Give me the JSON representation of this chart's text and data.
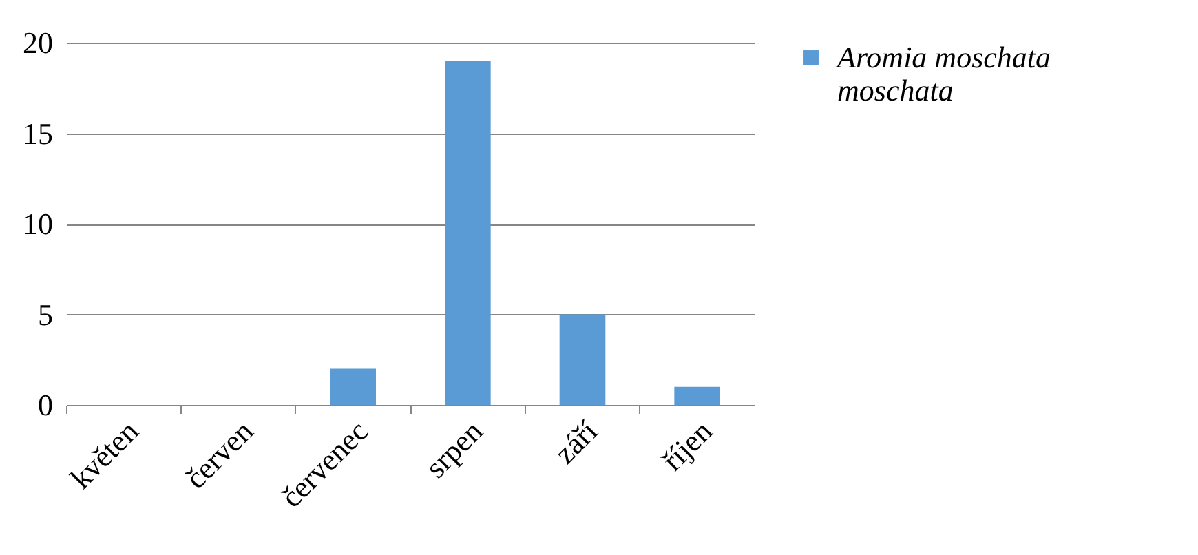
{
  "chart_data": {
    "type": "bar",
    "categories": [
      "květen",
      "červen",
      "červenec",
      "srpen",
      "září",
      "říjen"
    ],
    "series": [
      {
        "name": "Aromia moschata moschata",
        "color": "#5b9bd5",
        "values": [
          0,
          0,
          2,
          19,
          5,
          1
        ]
      }
    ],
    "ylim": [
      0,
      20
    ],
    "yticks": [
      0,
      5,
      10,
      15,
      20
    ],
    "grid": "y",
    "legend": "right"
  }
}
